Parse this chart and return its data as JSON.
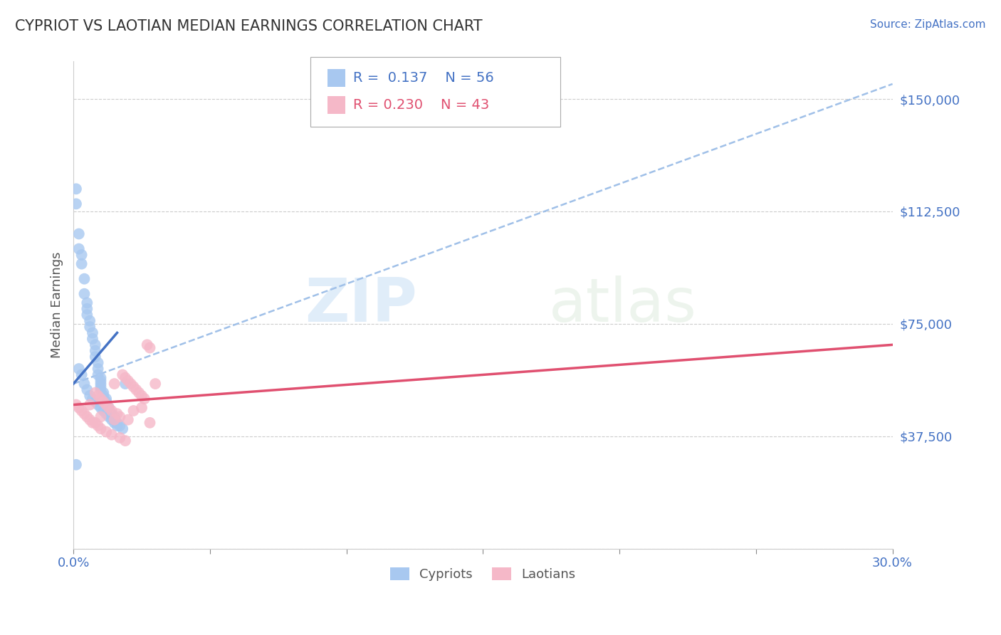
{
  "title": "CYPRIOT VS LAOTIAN MEDIAN EARNINGS CORRELATION CHART",
  "source": "Source: ZipAtlas.com",
  "ylabel": "Median Earnings",
  "xlim": [
    0.0,
    0.3
  ],
  "ylim": [
    0,
    162500
  ],
  "yticks": [
    0,
    37500,
    75000,
    112500,
    150000
  ],
  "ytick_labels": [
    "",
    "$37,500",
    "$75,000",
    "$112,500",
    "$150,000"
  ],
  "watermark_zip": "ZIP",
  "watermark_atlas": "atlas",
  "cypriot_color": "#a8c8f0",
  "laotian_color": "#f5b8c8",
  "cypriot_line_color": "#4472c4",
  "laotian_line_color": "#e05070",
  "dashed_line_color": "#a0c0e8",
  "legend_cypriot_r": "0.137",
  "legend_cypriot_n": "56",
  "legend_laotian_r": "0.230",
  "legend_laotian_n": "43",
  "cypriot_x": [
    0.001,
    0.001,
    0.002,
    0.002,
    0.003,
    0.003,
    0.004,
    0.004,
    0.005,
    0.005,
    0.005,
    0.006,
    0.006,
    0.007,
    0.007,
    0.008,
    0.008,
    0.008,
    0.009,
    0.009,
    0.009,
    0.01,
    0.01,
    0.01,
    0.01,
    0.01,
    0.011,
    0.011,
    0.012,
    0.012,
    0.012,
    0.013,
    0.013,
    0.014,
    0.015,
    0.015,
    0.016,
    0.017,
    0.018,
    0.019,
    0.002,
    0.003,
    0.004,
    0.005,
    0.006,
    0.007,
    0.008,
    0.009,
    0.01,
    0.011,
    0.012,
    0.013,
    0.014,
    0.015,
    0.016,
    0.001
  ],
  "cypriot_y": [
    120000,
    115000,
    105000,
    100000,
    98000,
    95000,
    90000,
    85000,
    82000,
    80000,
    78000,
    76000,
    74000,
    72000,
    70000,
    68000,
    66000,
    64000,
    62000,
    60000,
    58000,
    57000,
    56000,
    55000,
    54000,
    53000,
    52000,
    51000,
    50000,
    49000,
    48000,
    47000,
    46000,
    45000,
    44000,
    43000,
    42000,
    41000,
    40000,
    55000,
    60000,
    58000,
    55000,
    53000,
    51000,
    50000,
    49000,
    48000,
    47000,
    46000,
    45000,
    44000,
    43000,
    42000,
    41000,
    28000
  ],
  "laotian_x": [
    0.001,
    0.002,
    0.003,
    0.004,
    0.005,
    0.006,
    0.007,
    0.008,
    0.009,
    0.01,
    0.011,
    0.012,
    0.013,
    0.014,
    0.015,
    0.016,
    0.017,
    0.018,
    0.019,
    0.02,
    0.021,
    0.022,
    0.023,
    0.024,
    0.025,
    0.026,
    0.027,
    0.028,
    0.03,
    0.008,
    0.009,
    0.01,
    0.012,
    0.014,
    0.017,
    0.019,
    0.022,
    0.025,
    0.006,
    0.01,
    0.015,
    0.02,
    0.028
  ],
  "laotian_y": [
    48000,
    47000,
    46000,
    45000,
    44000,
    43000,
    42000,
    52000,
    51000,
    50000,
    49000,
    48000,
    47000,
    46000,
    55000,
    45000,
    44000,
    58000,
    57000,
    56000,
    55000,
    54000,
    53000,
    52000,
    51000,
    50000,
    68000,
    67000,
    55000,
    42000,
    41000,
    40000,
    39000,
    38000,
    37000,
    36000,
    46000,
    47000,
    48000,
    44000,
    43000,
    43000,
    42000
  ],
  "cypriot_line_x": [
    0.0,
    0.016
  ],
  "cypriot_line_y": [
    55000,
    72000
  ],
  "laotian_line_x": [
    0.0,
    0.3
  ],
  "laotian_line_y": [
    48000,
    68000
  ],
  "dashed_line_x": [
    0.0,
    0.3
  ],
  "dashed_line_y": [
    55000,
    155000
  ]
}
